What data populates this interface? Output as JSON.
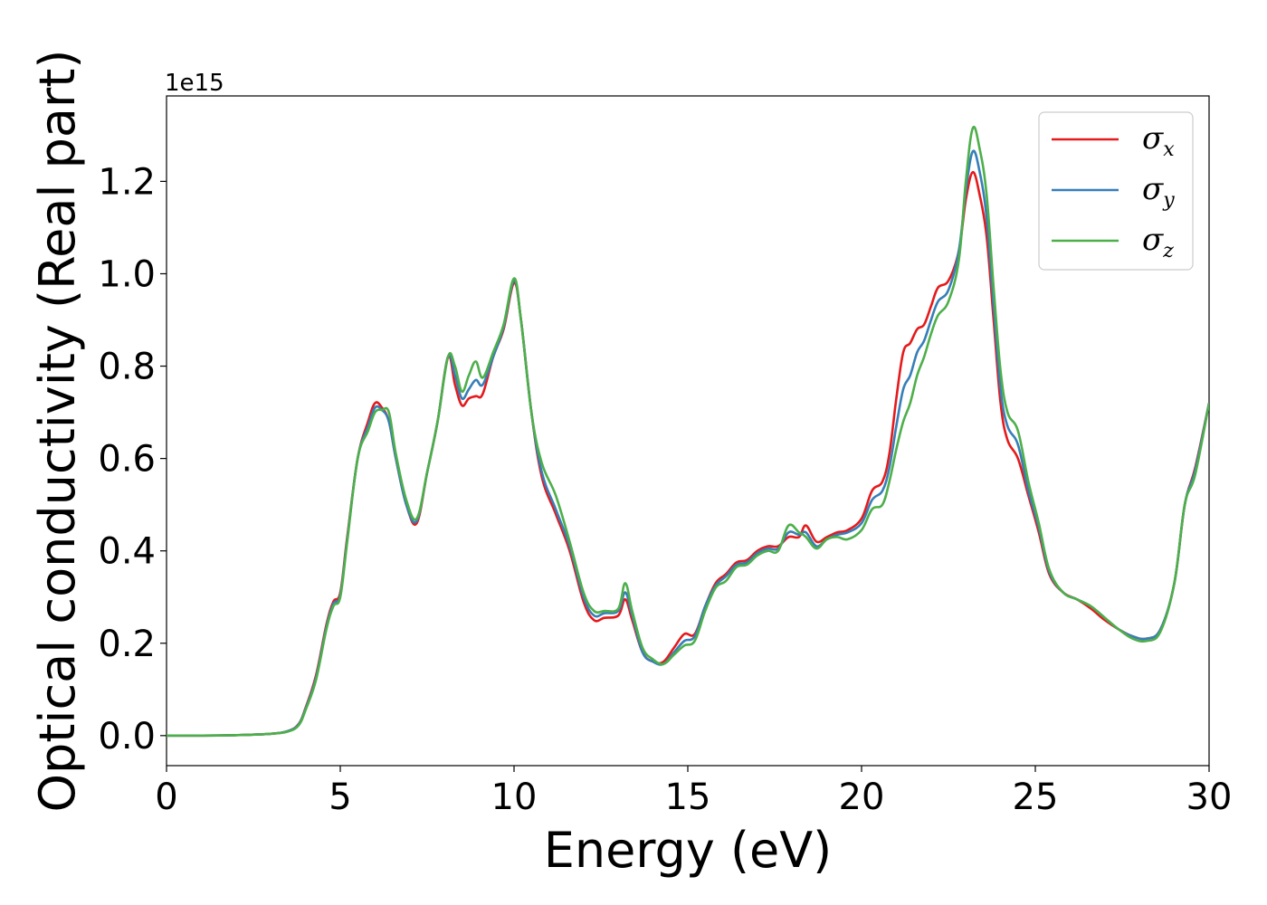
{
  "chart_data": {
    "type": "line",
    "xlabel": "Energy (eV)",
    "ylabel": "Optical conductivity (Real part)",
    "y_offset_label": "1e15",
    "xlim": [
      0,
      30
    ],
    "ylim": [
      -0.065,
      1.385
    ],
    "x_ticks": [
      0,
      5,
      10,
      15,
      20,
      25,
      30
    ],
    "y_ticks": [
      0.0,
      0.2,
      0.4,
      0.6,
      0.8,
      1.0,
      1.2
    ],
    "x_tick_labels": [
      "0",
      "5",
      "10",
      "15",
      "20",
      "25",
      "30"
    ],
    "y_tick_labels": [
      "0.0",
      "0.2",
      "0.4",
      "0.6",
      "0.8",
      "1.0",
      "1.2"
    ],
    "grid": false,
    "legend_position": "top-right",
    "x": [
      0,
      1,
      2,
      3,
      3.5,
      3.8,
      4.0,
      4.3,
      4.6,
      4.8,
      5.0,
      5.2,
      5.5,
      5.8,
      6.0,
      6.2,
      6.4,
      6.6,
      6.9,
      7.2,
      7.5,
      7.8,
      8.1,
      8.3,
      8.5,
      8.7,
      8.9,
      9.1,
      9.4,
      9.7,
      10.0,
      10.2,
      10.5,
      10.8,
      11.2,
      11.6,
      12.0,
      12.3,
      12.6,
      13.0,
      13.2,
      13.4,
      13.7,
      14.0,
      14.3,
      14.6,
      14.9,
      15.2,
      15.5,
      15.8,
      16.1,
      16.4,
      16.7,
      17.0,
      17.3,
      17.6,
      17.9,
      18.2,
      18.4,
      18.7,
      19.0,
      19.3,
      19.6,
      20.0,
      20.3,
      20.6,
      20.8,
      21.0,
      21.2,
      21.4,
      21.6,
      21.8,
      22.0,
      22.2,
      22.5,
      22.8,
      23.0,
      23.2,
      23.4,
      23.6,
      23.8,
      24.0,
      24.2,
      24.5,
      24.8,
      25.1,
      25.4,
      25.8,
      26.2,
      26.6,
      27.0,
      27.4,
      27.8,
      28.2,
      28.6,
      29.0,
      29.3,
      29.6,
      30.0
    ],
    "series": [
      {
        "name": "σx",
        "color": "#e41a1c",
        "values": [
          0.0,
          0.0,
          0.001,
          0.004,
          0.01,
          0.025,
          0.06,
          0.13,
          0.24,
          0.29,
          0.31,
          0.43,
          0.6,
          0.68,
          0.72,
          0.71,
          0.68,
          0.6,
          0.5,
          0.46,
          0.57,
          0.68,
          0.82,
          0.76,
          0.715,
          0.73,
          0.735,
          0.74,
          0.82,
          0.88,
          0.98,
          0.9,
          0.7,
          0.56,
          0.48,
          0.4,
          0.29,
          0.25,
          0.255,
          0.26,
          0.295,
          0.25,
          0.18,
          0.16,
          0.16,
          0.19,
          0.22,
          0.22,
          0.28,
          0.33,
          0.35,
          0.375,
          0.38,
          0.4,
          0.41,
          0.41,
          0.43,
          0.43,
          0.455,
          0.42,
          0.43,
          0.44,
          0.445,
          0.47,
          0.53,
          0.55,
          0.61,
          0.73,
          0.83,
          0.85,
          0.88,
          0.89,
          0.93,
          0.97,
          0.985,
          1.05,
          1.16,
          1.22,
          1.17,
          1.08,
          0.9,
          0.72,
          0.64,
          0.6,
          0.52,
          0.44,
          0.35,
          0.31,
          0.295,
          0.275,
          0.25,
          0.23,
          0.215,
          0.21,
          0.23,
          0.33,
          0.5,
          0.58,
          0.72
        ]
      },
      {
        "name": "σy",
        "color": "#377eb8",
        "values": [
          0.0,
          0.0,
          0.001,
          0.004,
          0.01,
          0.024,
          0.058,
          0.125,
          0.235,
          0.285,
          0.305,
          0.425,
          0.6,
          0.67,
          0.71,
          0.705,
          0.68,
          0.6,
          0.5,
          0.465,
          0.57,
          0.68,
          0.82,
          0.78,
          0.73,
          0.75,
          0.77,
          0.76,
          0.82,
          0.885,
          0.985,
          0.9,
          0.7,
          0.57,
          0.49,
          0.41,
          0.3,
          0.26,
          0.265,
          0.27,
          0.31,
          0.26,
          0.18,
          0.16,
          0.155,
          0.18,
          0.205,
          0.215,
          0.28,
          0.325,
          0.345,
          0.37,
          0.375,
          0.395,
          0.405,
          0.405,
          0.44,
          0.435,
          0.44,
          0.41,
          0.425,
          0.435,
          0.44,
          0.46,
          0.51,
          0.53,
          0.58,
          0.67,
          0.75,
          0.78,
          0.83,
          0.855,
          0.9,
          0.94,
          0.965,
          1.05,
          1.18,
          1.265,
          1.22,
          1.12,
          0.93,
          0.75,
          0.67,
          0.63,
          0.53,
          0.45,
          0.355,
          0.31,
          0.295,
          0.28,
          0.255,
          0.23,
          0.215,
          0.21,
          0.23,
          0.33,
          0.5,
          0.575,
          0.72
        ]
      },
      {
        "name": "σz",
        "color": "#4daf4a",
        "values": [
          0.0,
          0.0,
          0.001,
          0.004,
          0.009,
          0.022,
          0.055,
          0.12,
          0.23,
          0.28,
          0.3,
          0.42,
          0.6,
          0.66,
          0.7,
          0.705,
          0.7,
          0.61,
          0.51,
          0.47,
          0.57,
          0.68,
          0.82,
          0.8,
          0.745,
          0.78,
          0.81,
          0.775,
          0.83,
          0.89,
          0.99,
          0.9,
          0.7,
          0.59,
          0.52,
          0.42,
          0.31,
          0.27,
          0.27,
          0.275,
          0.33,
          0.27,
          0.19,
          0.165,
          0.155,
          0.175,
          0.195,
          0.205,
          0.27,
          0.32,
          0.335,
          0.365,
          0.37,
          0.39,
          0.4,
          0.4,
          0.455,
          0.44,
          0.43,
          0.405,
          0.425,
          0.43,
          0.425,
          0.445,
          0.49,
          0.5,
          0.55,
          0.62,
          0.68,
          0.72,
          0.78,
          0.82,
          0.87,
          0.91,
          0.94,
          1.03,
          1.2,
          1.315,
          1.27,
          1.17,
          0.97,
          0.79,
          0.7,
          0.66,
          0.55,
          0.46,
          0.36,
          0.31,
          0.295,
          0.28,
          0.255,
          0.23,
          0.21,
          0.205,
          0.225,
          0.33,
          0.5,
          0.565,
          0.72
        ]
      }
    ]
  }
}
